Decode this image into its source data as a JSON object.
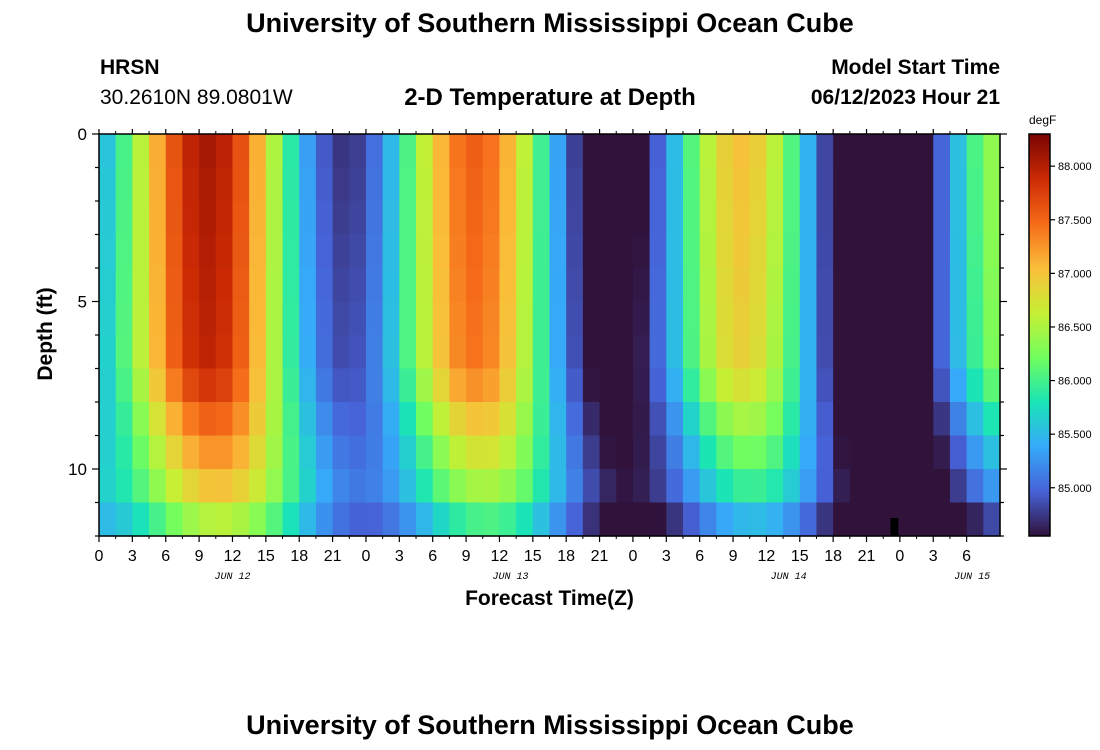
{
  "header": {
    "title": "University of Southern Mississippi Ocean Cube",
    "station": "HRSN",
    "coords": "30.2610N  89.0801W",
    "subtitle": "2-D Temperature at Depth",
    "model_label": "Model Start Time",
    "model_time": "06/12/2023 Hour 21"
  },
  "footer": {
    "title": "University of Southern Mississippi Ocean Cube"
  },
  "chart_data": {
    "type": "heatmap",
    "title": "2-D Temperature at Depth",
    "xlabel": "Forecast Time(Z)",
    "ylabel": "Depth (ft)",
    "x_range_hours": [
      0,
      81
    ],
    "y_range_ft": [
      0,
      12
    ],
    "x_hours_step": 1.5,
    "x_tick_step_hours": 3,
    "x_ticks": [
      "0",
      "3",
      "6",
      "9",
      "12",
      "15",
      "18",
      "21",
      "0",
      "3",
      "6",
      "9",
      "12",
      "15",
      "18",
      "21",
      "0",
      "3",
      "6",
      "9",
      "12",
      "15",
      "18",
      "21",
      "0",
      "3",
      "6"
    ],
    "date_labels": [
      {
        "text": "JUN 12",
        "hour": 12
      },
      {
        "text": "JUN 13",
        "hour": 37
      },
      {
        "text": "JUN 14",
        "hour": 62
      },
      {
        "text": "JUN 15",
        "hour": 78.5
      }
    ],
    "y_ticks": [
      0,
      5,
      10
    ],
    "depth_levels_ft": [
      0.5,
      1.5,
      2.5,
      3.5,
      4.5,
      5.5,
      6.5,
      7.5,
      8.5,
      9.5,
      10.5,
      11.5
    ],
    "model_start_marker_hour": 71.5,
    "colorbar": {
      "unit": "degF",
      "min": 84.55,
      "max": 88.3,
      "ticks": [
        "88.000",
        "87.500",
        "87.000",
        "86.500",
        "86.000",
        "85.500",
        "85.000"
      ],
      "tick_values": [
        88.0,
        87.5,
        87.0,
        86.5,
        86.0,
        85.5,
        85.0
      ],
      "colormap": [
        "#30123b",
        "#4662d7",
        "#36aaf9",
        "#1ae4b6",
        "#72fe5e",
        "#c7ef34",
        "#fabe39",
        "#f66b19",
        "#cb2a04",
        "#7a0403"
      ]
    },
    "colors": {
      "frame": "#000000",
      "background": "#ffffff"
    }
  }
}
